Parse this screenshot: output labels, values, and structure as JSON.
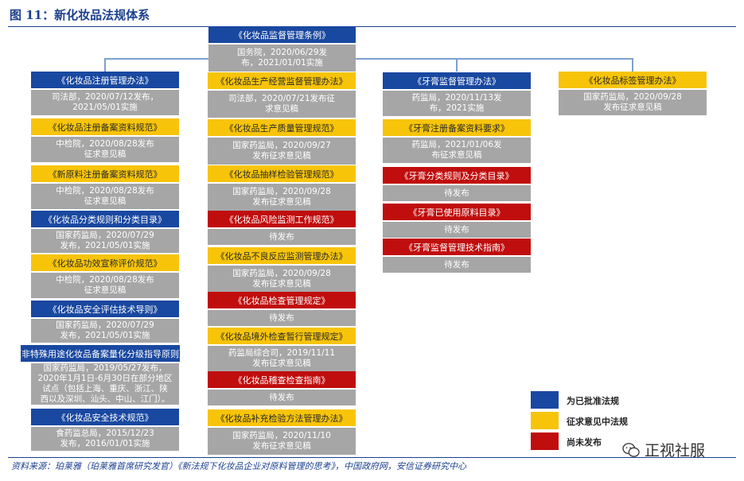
{
  "figure_title": "图 11：新化妆品法规体系",
  "root": {
    "title": "《化妆品监督管理条例》",
    "detail": "国务院，2020/06/29发\n布，2021/01/01实施"
  },
  "col1": [
    {
      "title": "《化妆品注册管理办法》",
      "detail": "司法部，2020/07/12发布，\n2021/05/01实施",
      "status": "blue"
    },
    {
      "title": "《化妆品注册备案资料规范》",
      "detail": "中检院，2020/08/28发布\n征求意见稿",
      "status": "yellow"
    },
    {
      "title": "《新原料注册备案资料规范》",
      "detail": "中检院，2020/08/28发布\n征求意见稿",
      "status": "yellow"
    },
    {
      "title": "《化妆品分类规则和分类目录》",
      "detail": "国家药监局，2020/07/29\n发布，2021/05/01实施",
      "status": "blue"
    },
    {
      "title": "《化妆品功效宣称评价规范》",
      "detail": "中检院，2020/08/28发布\n征求意见稿",
      "status": "yellow"
    },
    {
      "title": "《化妆品安全评估技术导则》",
      "detail": "国家药监局，2020/07/29\n发布，2021/05/01实施",
      "status": "blue"
    },
    {
      "title": "《非特殊用途化妆品备案量化分级指导原则》",
      "detail": "国家药监局，2019/05/27发布，\n2020年1月1日-6月30日在部分地区\n试点（包括上海、重庆、浙江、陕\n西以及深圳、汕头、中山、江门）。",
      "status": "blue"
    },
    {
      "title": "《化妆品安全技术规范》",
      "detail": "食药监总局，2015/12/23\n发布，2016/01/01实施",
      "status": "blue"
    }
  ],
  "col2": [
    {
      "title": "《化妆品生产经营监督管理办法》",
      "detail": "司法部，2020/07/21发布征\n求意见稿",
      "status": "yellow"
    },
    {
      "title": "《化妆品生产质量管理规范》",
      "detail": "国家药监局，2020/09/27\n发布征求意见稿",
      "status": "yellow"
    },
    {
      "title": "《化妆品抽样检验管理规范》",
      "detail": "国家药监局，2020/09/28\n发布征求意见稿",
      "status": "yellow"
    },
    {
      "title": "《化妆品风险监测工作规范》",
      "detail": "待发布",
      "status": "red"
    },
    {
      "title": "《化妆品不良反应监测管理办法》",
      "detail": "国家药监局，2020/09/28\n发布征求意见稿",
      "status": "yellow"
    },
    {
      "title": "《化妆品检查管理规定》",
      "detail": "待发布",
      "status": "red"
    },
    {
      "title": "《化妆品境外检查暂行管理规定》",
      "detail": "药监局综合司，2019/11/11\n发布征求意见稿",
      "status": "yellow"
    },
    {
      "title": "《化妆品稽查检查指南》",
      "detail": "待发布",
      "status": "red"
    },
    {
      "title": "《化妆品补充检验方法管理办法》",
      "detail": "国家药监局，2020/11/10\n发布征求意见稿",
      "status": "yellow"
    }
  ],
  "col3": [
    {
      "title": "《牙膏监督管理办法》",
      "detail": "药监局，2020/11/13发\n布，2021实施",
      "status": "blue"
    },
    {
      "title": "《牙膏注册备案资料要求》",
      "detail": "药监局，2021/01/06发\n布征求意见稿",
      "status": "yellow"
    },
    {
      "title": "《牙膏分类规则及分类目录》",
      "detail": "待发布",
      "status": "red"
    },
    {
      "title": "《牙膏已使用原料目录》",
      "detail": "待发布",
      "status": "red"
    },
    {
      "title": "《牙膏监督管理技术指南》",
      "detail": "待发布",
      "status": "red"
    }
  ],
  "col4": [
    {
      "title": "《化妆品标签管理办法》",
      "detail": "国家药监局，2020/09/28\n发布征求意见稿",
      "status": "yellow"
    }
  ],
  "legend": [
    {
      "color": "#1948a0",
      "label": "为已批准法规"
    },
    {
      "color": "#f7c40a",
      "label": "征求意见中法规"
    },
    {
      "color": "#c00d0d",
      "label": "尚未发布"
    }
  ],
  "source": "资料来源：珀莱雅（珀莱雅首席研究发官）《新法规下化妆品企业对原料管理的思考》，中国政府网，安信证券研究中心",
  "watermark": "正视社服"
}
